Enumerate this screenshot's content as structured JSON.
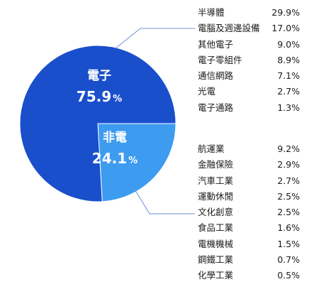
{
  "chart_data": {
    "type": "pie",
    "slices": [
      {
        "name": "電子",
        "value": 75.9,
        "value_text": "75.9",
        "unit": "%",
        "color": "#1a4fcc"
      },
      {
        "name": "非電",
        "value": 24.1,
        "value_text": "24.1",
        "unit": "%",
        "color": "#3d9bf0"
      }
    ],
    "breakdown": [
      {
        "parent": "電子",
        "items": [
          {
            "label": "半導體",
            "value": 29.9,
            "value_text": "29.9%"
          },
          {
            "label": "電腦及週邊設備",
            "value": 17.0,
            "value_text": "17.0%"
          },
          {
            "label": "其他電子",
            "value": 9.0,
            "value_text": "9.0%"
          },
          {
            "label": "電子零組件",
            "value": 8.9,
            "value_text": "8.9%"
          },
          {
            "label": "通信網路",
            "value": 7.1,
            "value_text": "7.1%"
          },
          {
            "label": "光電",
            "value": 2.7,
            "value_text": "2.7%"
          },
          {
            "label": "電子通路",
            "value": 1.3,
            "value_text": "1.3%"
          }
        ]
      },
      {
        "parent": "非電",
        "items": [
          {
            "label": "航運業",
            "value": 9.2,
            "value_text": "9.2%"
          },
          {
            "label": "金融保險",
            "value": 2.9,
            "value_text": "2.9%"
          },
          {
            "label": "汽車工業",
            "value": 2.7,
            "value_text": "2.7%"
          },
          {
            "label": "運動休閒",
            "value": 2.5,
            "value_text": "2.5%"
          },
          {
            "label": "文化創意",
            "value": 2.5,
            "value_text": "2.5%"
          },
          {
            "label": "食品工業",
            "value": 1.6,
            "value_text": "1.6%"
          },
          {
            "label": "電機機械",
            "value": 1.5,
            "value_text": "1.5%"
          },
          {
            "label": "鋼鐵工業",
            "value": 0.7,
            "value_text": "0.7%"
          },
          {
            "label": "化學工業",
            "value": 0.5,
            "value_text": "0.5%"
          }
        ]
      }
    ],
    "leader_line_color": "#6b8fd6"
  }
}
